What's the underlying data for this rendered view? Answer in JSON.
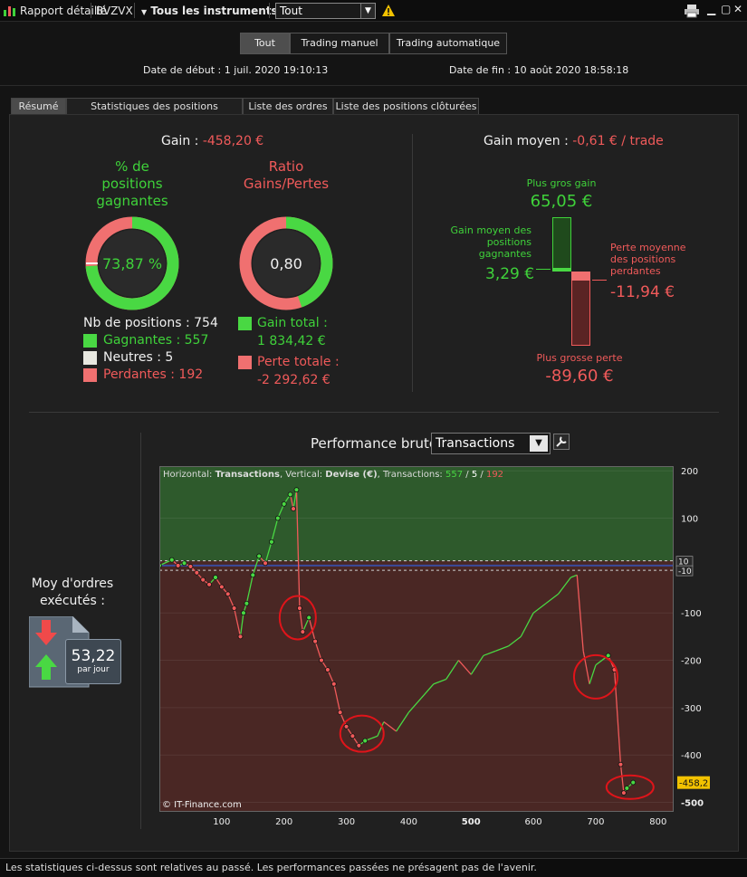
{
  "titlebar": {
    "report_label": "Rapport détaillé",
    "ticker": "BVZVX",
    "instruments_label": "Tous les instruments",
    "filter_value": "Tout",
    "warning_icon": "warning-icon",
    "print_icon": "print-icon"
  },
  "toggle": {
    "all": "Tout",
    "manual": "Trading manuel",
    "auto": "Trading automatique"
  },
  "dates": {
    "start_label": "Date de début :",
    "start_value": "1 juil. 2020 19:10:13",
    "end_label": "Date de fin :",
    "end_value": "10 août 2020 18:58:18"
  },
  "tabs": [
    "Résumé",
    "Statistiques des positions clôturées",
    "Liste des ordres",
    "Liste des positions clôturées"
  ],
  "summary": {
    "gain_label": "Gain :",
    "gain_value": "-458,20 €",
    "winrate_title_1": "% de",
    "winrate_title_2": "positions",
    "winrate_title_3": "gagnantes",
    "winrate_value": "73,87 %",
    "winrate_fraction": 0.7387,
    "ratio_title_1": "Ratio",
    "ratio_title_2": "Gains/Pertes",
    "ratio_value": "0,80",
    "ratio_fraction": 0.4445,
    "positions_label": "Nb de positions : 754",
    "winners_label": "Gagnantes : 557",
    "neutral_label": "Neutres : 5",
    "losers_label": "Perdantes : 192",
    "total_gain_label": "Gain total :",
    "total_gain_value": "1 834,42 €",
    "total_loss_label": "Perte totale :",
    "total_loss_value": "-2 292,62 €"
  },
  "average": {
    "title_label": "Gain moyen :",
    "title_value": "-0,61 € / trade",
    "best_label": "Plus gros gain",
    "best_value": "65,05 €",
    "avg_win_label_1": "Gain moyen des",
    "avg_win_label_2": "positions",
    "avg_win_label_3": "gagnantes",
    "avg_win_value": "3,29 €",
    "avg_loss_label_1": "Perte moyenne",
    "avg_loss_label_2": "des positions",
    "avg_loss_label_3": "perdantes",
    "avg_loss_value": "-11,94 €",
    "worst_label": "Plus grosse perte",
    "worst_value": "-89,60 €"
  },
  "orders": {
    "title_1": "Moy d'ordres",
    "title_2": "exécutés :",
    "value": "53,22",
    "unit": "par jour"
  },
  "perf": {
    "title": "Performance brute",
    "select_value": "Transactions",
    "wrench_icon": "wrench-icon"
  },
  "chart_data": {
    "type": "line",
    "header": {
      "h_label": "Horizontal:",
      "h_value": "Transactions",
      "v_label": "Vertical:",
      "v_value": "Devise (€)",
      "t_label": "Transactions:",
      "wins": "557",
      "neutral": "5",
      "losses": "192"
    },
    "watermark": "© IT-Finance.com",
    "xlim": [
      0,
      825
    ],
    "ylim": [
      -520,
      210
    ],
    "x_ticks": [
      100,
      200,
      300,
      400,
      500,
      600,
      700,
      800
    ],
    "y_ticks": [
      200,
      100,
      -100,
      -200,
      -300,
      -400,
      -500
    ],
    "bands": {
      "upper": 10,
      "lower": -10
    },
    "last_value": "-458,2",
    "series_x": [
      0,
      20,
      30,
      40,
      50,
      60,
      70,
      80,
      90,
      100,
      110,
      120,
      130,
      135,
      140,
      150,
      160,
      170,
      180,
      190,
      200,
      210,
      215,
      220,
      225,
      230,
      240,
      250,
      260,
      270,
      280,
      290,
      300,
      310,
      320,
      330,
      340,
      350,
      360,
      380,
      400,
      420,
      440,
      460,
      480,
      500,
      520,
      540,
      560,
      580,
      600,
      620,
      640,
      660,
      670,
      680,
      690,
      700,
      710,
      720,
      730,
      740,
      745,
      750,
      760
    ],
    "series_y": [
      0,
      12,
      0,
      5,
      -2,
      -15,
      -30,
      -40,
      -25,
      -45,
      -60,
      -90,
      -150,
      -100,
      -80,
      -20,
      20,
      5,
      50,
      100,
      130,
      150,
      120,
      160,
      -90,
      -140,
      -110,
      -160,
      -200,
      -220,
      -250,
      -310,
      -340,
      -360,
      -380,
      -370,
      -365,
      -360,
      -330,
      -350,
      -310,
      -280,
      -250,
      -240,
      -200,
      -230,
      -190,
      -180,
      -170,
      -150,
      -100,
      -80,
      -60,
      -25,
      -20,
      -180,
      -250,
      -210,
      -200,
      -190,
      -220,
      -420,
      -480,
      -470,
      -458
    ]
  }
}
